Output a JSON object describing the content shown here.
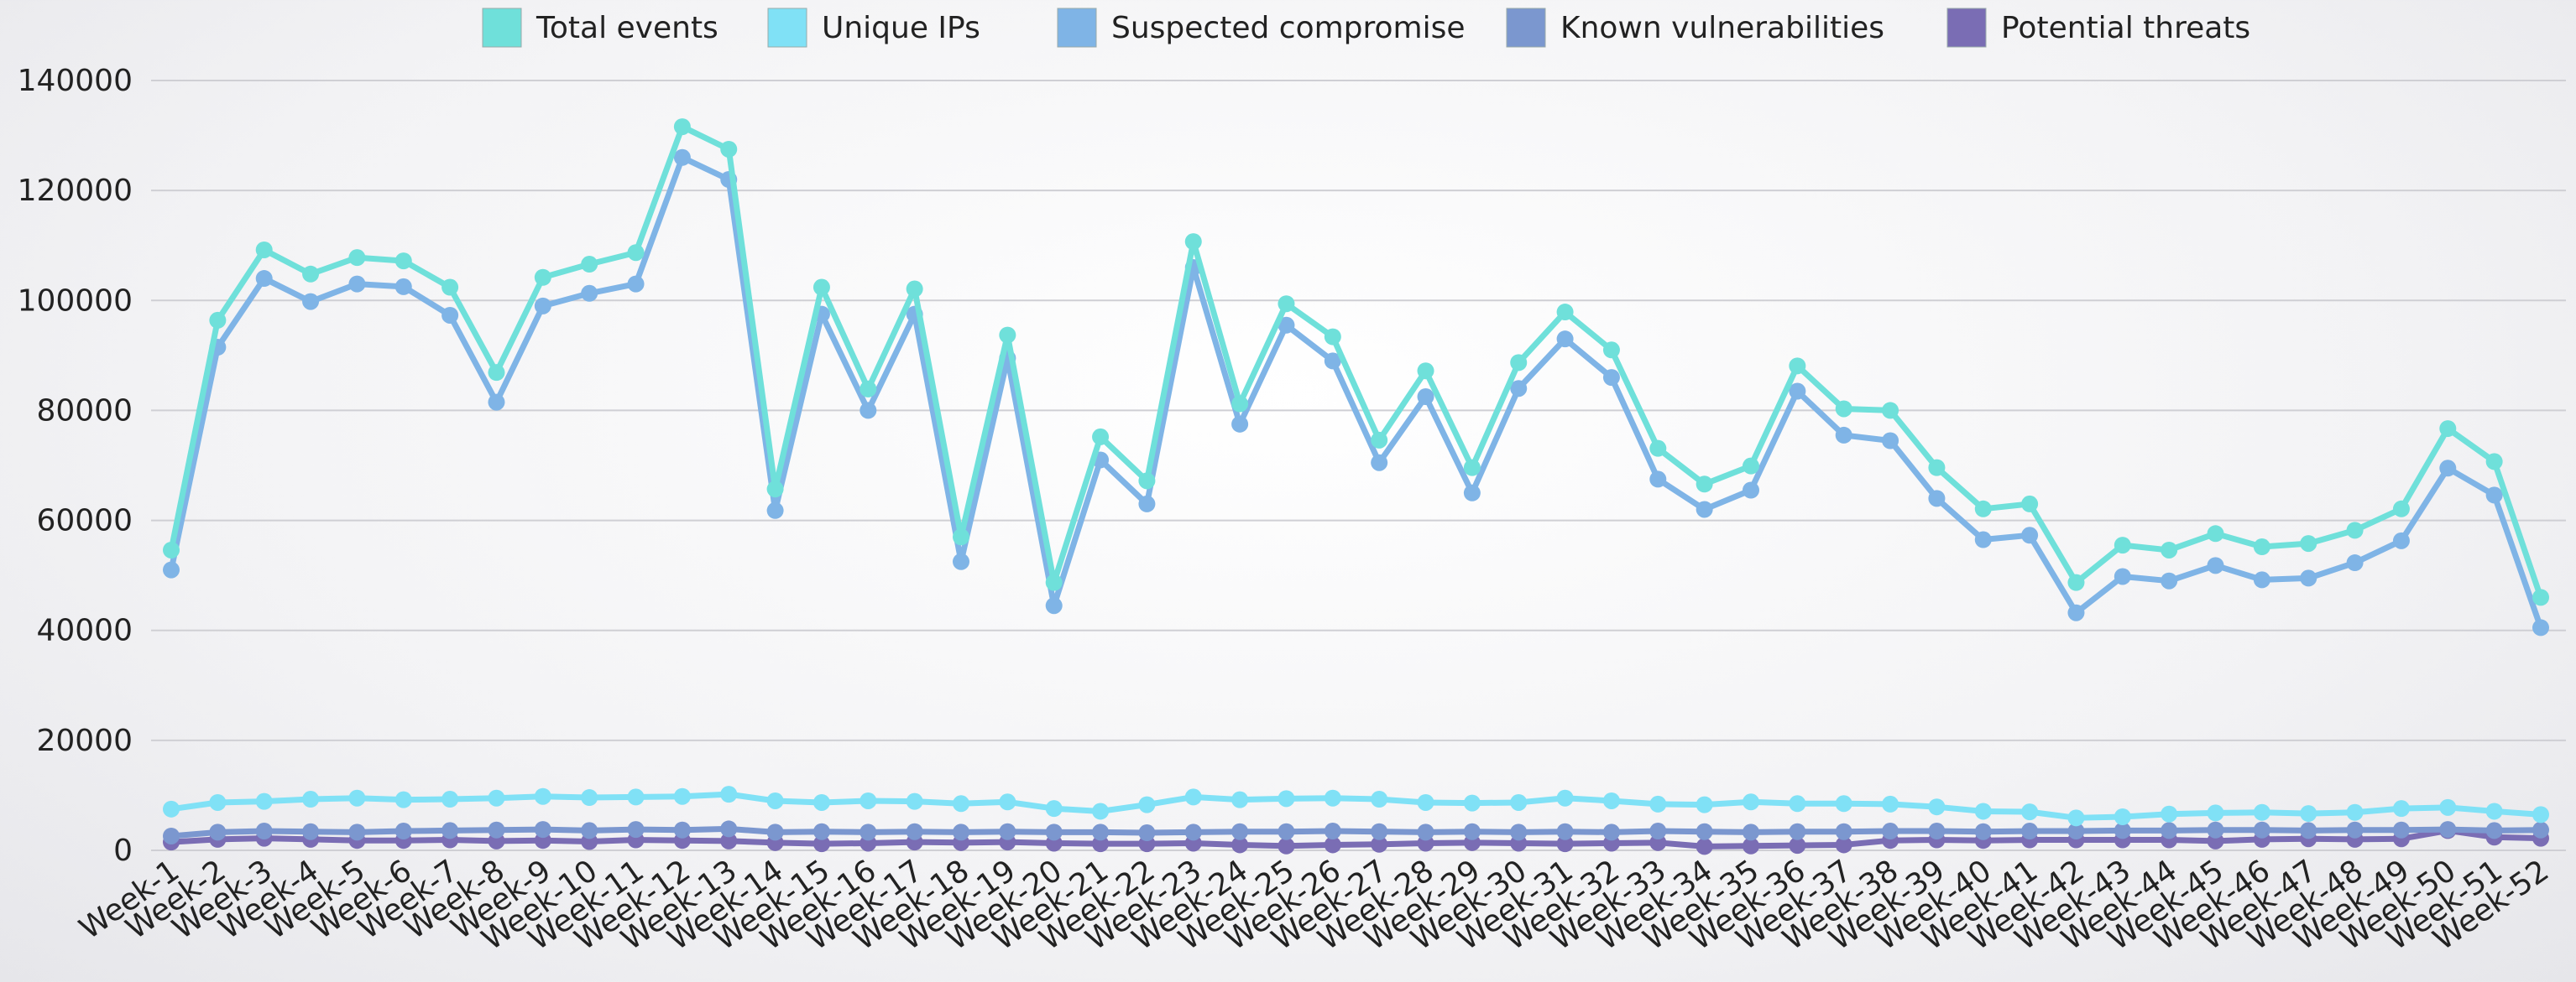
{
  "chart_data": {
    "type": "line",
    "categories": [
      "Week-1",
      "Week-2",
      "Week-3",
      "Week-4",
      "Week-5",
      "Week-6",
      "Week-7",
      "Week-8",
      "Week-9",
      "Week-10",
      "Week-11",
      "Week-12",
      "Week-13",
      "Week-14",
      "Week-15",
      "Week-16",
      "Week-17",
      "Week-18",
      "Week-19",
      "Week-20",
      "Week-21",
      "Week-22",
      "Week-23",
      "Week-24",
      "Week-25",
      "Week-26",
      "Week-27",
      "Week-28",
      "Week-29",
      "Week-30",
      "Week-31",
      "Week-32",
      "Week-33",
      "Week-34",
      "Week-35",
      "Week-36",
      "Week-37",
      "Week-38",
      "Week-39",
      "Week-40",
      "Week-41",
      "Week-42",
      "Week-43",
      "Week-44",
      "Week-45",
      "Week-46",
      "Week-47",
      "Week-48",
      "Week-49",
      "Week-50",
      "Week-51",
      "Week-52"
    ],
    "series": [
      {
        "name": "Total events",
        "color": "#6fe0da",
        "values": [
          54600,
          96400,
          109200,
          104800,
          107800,
          107200,
          102400,
          86900,
          104200,
          106600,
          108700,
          131600,
          127500,
          65700,
          102400,
          83900,
          102100,
          57000,
          93700,
          48700,
          75200,
          67200,
          110700,
          81200,
          99400,
          93400,
          74600,
          87200,
          69600,
          88700,
          97900,
          91000,
          73100,
          66600,
          69900,
          88100,
          80300,
          80000,
          69600,
          62100,
          63000,
          48700,
          55500,
          54600,
          57600,
          55200,
          55800,
          58200,
          62100,
          76700,
          70700,
          46000
        ]
      },
      {
        "name": "Unique IPs",
        "color": "#80e1f6",
        "values": [
          7500,
          8700,
          8900,
          9300,
          9500,
          9200,
          9300,
          9500,
          9800,
          9600,
          9700,
          9800,
          10200,
          9000,
          8700,
          9000,
          8900,
          8500,
          8800,
          7600,
          7100,
          8300,
          9700,
          9200,
          9400,
          9500,
          9300,
          8700,
          8600,
          8700,
          9500,
          9000,
          8400,
          8300,
          8800,
          8500,
          8500,
          8400,
          7900,
          7100,
          7000,
          5900,
          6100,
          6600,
          6800,
          6900,
          6700,
          6900,
          7600,
          7800,
          7100,
          6500
        ]
      },
      {
        "name": "Suspected compromise",
        "color": "#7fb4e6",
        "values": [
          51000,
          91500,
          104000,
          99800,
          103000,
          102500,
          97300,
          81500,
          99000,
          101300,
          103000,
          126000,
          122000,
          61800,
          97500,
          80000,
          97500,
          52500,
          89500,
          44500,
          71000,
          63000,
          106000,
          77500,
          95500,
          89000,
          70500,
          82500,
          65000,
          84000,
          93000,
          86000,
          67500,
          62000,
          65500,
          83500,
          75500,
          74500,
          64000,
          56500,
          57300,
          43200,
          49800,
          49000,
          51800,
          49200,
          49500,
          52300,
          56300,
          69500,
          64600,
          40500
        ]
      },
      {
        "name": "Known vulnerabilities",
        "color": "#7b97cf",
        "values": [
          2600,
          3300,
          3500,
          3400,
          3300,
          3500,
          3600,
          3700,
          3800,
          3600,
          3800,
          3700,
          3900,
          3300,
          3400,
          3300,
          3400,
          3300,
          3400,
          3300,
          3300,
          3200,
          3300,
          3400,
          3400,
          3500,
          3400,
          3300,
          3400,
          3300,
          3400,
          3300,
          3500,
          3400,
          3300,
          3400,
          3400,
          3500,
          3500,
          3400,
          3500,
          3500,
          3600,
          3600,
          3700,
          3700,
          3600,
          3700,
          3700,
          3800,
          3600,
          3700
        ]
      },
      {
        "name": "Potential threats",
        "color": "#7a6db4",
        "values": [
          1500,
          2000,
          2200,
          2000,
          1800,
          1800,
          1900,
          1700,
          1800,
          1600,
          1900,
          1800,
          1700,
          1400,
          1200,
          1300,
          1500,
          1400,
          1500,
          1300,
          1200,
          1200,
          1300,
          1000,
          800,
          1000,
          1100,
          1300,
          1400,
          1300,
          1200,
          1300,
          1400,
          700,
          800,
          900,
          1000,
          1800,
          1900,
          1800,
          1900,
          1900,
          1900,
          1900,
          1700,
          2000,
          2100,
          2000,
          2100,
          3600,
          2400,
          2200
        ]
      }
    ],
    "ylim": [
      0,
      140000
    ],
    "yticks": [
      0,
      20000,
      40000,
      60000,
      80000,
      100000,
      120000,
      140000
    ],
    "grid": true,
    "legend": "top"
  }
}
